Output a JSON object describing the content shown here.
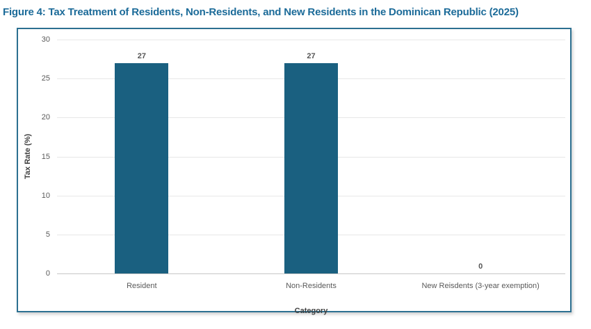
{
  "title": "Figure 4: Tax Treatment of Residents, Non-Residents, and New Residents in the Dominican Republic (2025)",
  "colors": {
    "title_text": "#1c6b99",
    "bar_fill": "#1a6080",
    "frame_border": "#2c7091",
    "gridline": "#e7e7e7",
    "zero_axis_line": "#c6c6c6",
    "tick_label_text": "#595959",
    "axis_title_text": "#404040"
  },
  "chart_data": {
    "type": "bar",
    "categories": [
      "Resident",
      "Non-Residents",
      "New Reisdents (3-year exemption)"
    ],
    "values": [
      27,
      27,
      0
    ],
    "data_labels": [
      "27",
      "27",
      "0"
    ],
    "title": "",
    "xlabel": "Category",
    "ylabel": "Tax Rate (%)",
    "ylim": [
      0,
      30
    ],
    "yticks": [
      30,
      25,
      20,
      15,
      10,
      5,
      0
    ],
    "grid": "horizontal",
    "legend": "none",
    "bar_color": "#1a6080"
  }
}
